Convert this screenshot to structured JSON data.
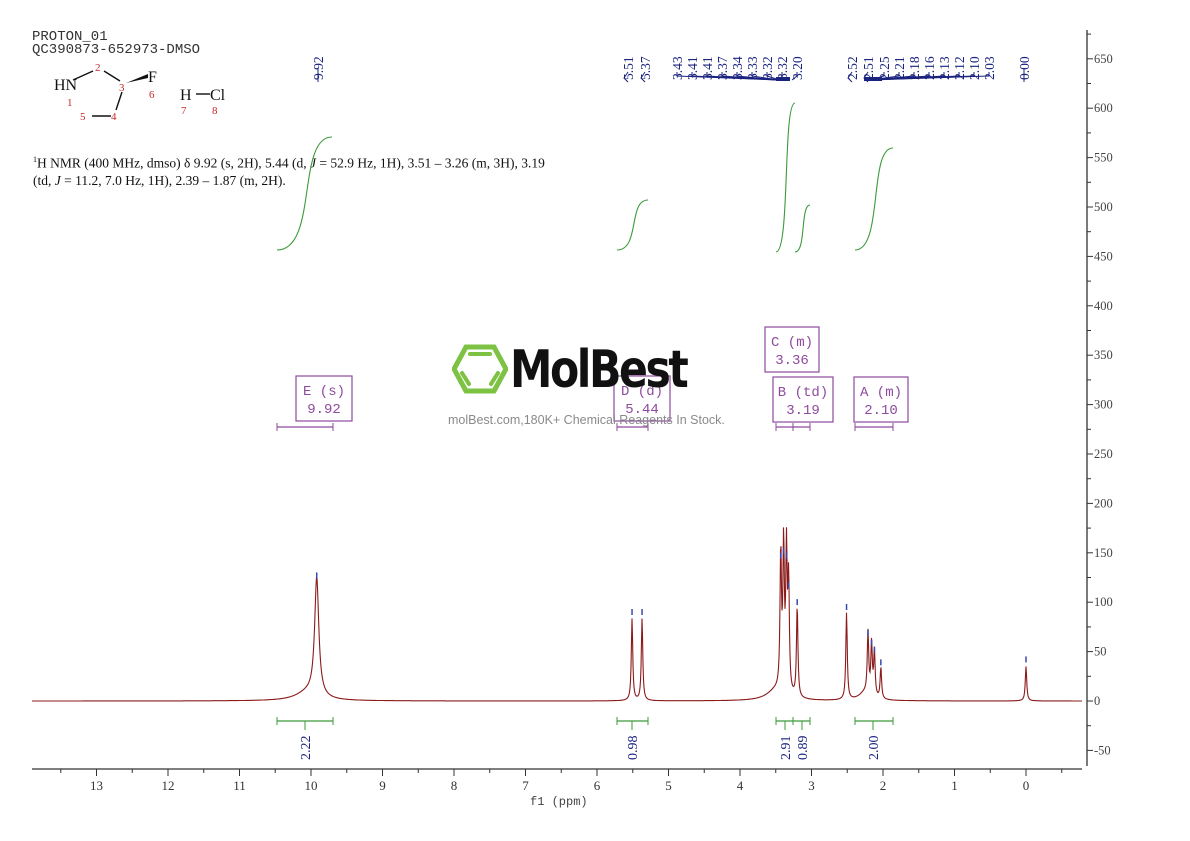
{
  "header": {
    "line1": "PROTON_01",
    "line2": "QC390873-652973-DMSO"
  },
  "structure": {
    "atoms": [
      {
        "label": "HN",
        "num": "1"
      },
      {
        "label": "",
        "num": "2"
      },
      {
        "label": "",
        "num": "3"
      },
      {
        "label": "",
        "num": "4"
      },
      {
        "label": "",
        "num": "5"
      },
      {
        "label": "F",
        "num": "6"
      },
      {
        "label": "H",
        "num": "7"
      },
      {
        "label": "Cl",
        "num": "8"
      }
    ]
  },
  "description": {
    "prefix_sup": "1",
    "text_a": "H NMR (400 MHz, dmso) δ 9.92 (s, 2H), 5.44 (d, ",
    "J1": "J",
    "text_b": " = 52.9 Hz, 1H), 3.51 – 3.26 (m, 3H), 3.19",
    "text_c": "(td, ",
    "J2": "J",
    "text_d": " = 11.2, 7.0 Hz, 1H), 2.39 – 1.87 (m, 2H)."
  },
  "watermark": {
    "brand": "MolBest",
    "tagline": "molBest.com,180K+ Chemical Reagents In Stock.",
    "accent": "#7dc242"
  },
  "colors": {
    "spectrum": "#8b1a1a",
    "integral": "#3a9a3a",
    "peak_labels": "#1a237e",
    "multiplet_boxes": "#8e4a9e",
    "axis": "#333333"
  },
  "chart_data": {
    "type": "line",
    "title": "PROTON_01 QC390873-652973-DMSO",
    "xlabel": "f1 (ppm)",
    "ylabel": "",
    "xlim": [
      13.9,
      -0.8
    ],
    "ylim": [
      -65,
      680
    ],
    "x_ticks": [
      "13",
      "12",
      "11",
      "10",
      "9",
      "8",
      "7",
      "6",
      "5",
      "4",
      "3",
      "2",
      "1",
      "0"
    ],
    "y_ticks": [
      "650",
      "600",
      "550",
      "500",
      "450",
      "400",
      "350",
      "300",
      "250",
      "200",
      "150",
      "100",
      "50",
      "0",
      "-50"
    ],
    "peak_labels": [
      "9.92",
      "5.51",
      "5.37",
      "3.43",
      "3.41",
      "3.41",
      "3.37",
      "3.34",
      "3.33",
      "3.32",
      "3.32",
      "3.20",
      "2.52",
      "2.51",
      "2.25",
      "2.21",
      "2.18",
      "2.16",
      "2.13",
      "2.12",
      "2.10",
      "2.03",
      "0.00"
    ],
    "peaks": [
      {
        "ppm": 9.92,
        "height": 120
      },
      {
        "ppm": 5.51,
        "height": 83
      },
      {
        "ppm": 5.37,
        "height": 83
      },
      {
        "ppm": 3.43,
        "height": 140
      },
      {
        "ppm": 3.39,
        "height": 145
      },
      {
        "ppm": 3.35,
        "height": 140
      },
      {
        "ppm": 3.32,
        "height": 110
      },
      {
        "ppm": 3.2,
        "height": 93
      },
      {
        "ppm": 2.51,
        "height": 88
      },
      {
        "ppm": 2.21,
        "height": 62
      },
      {
        "ppm": 2.16,
        "height": 52
      },
      {
        "ppm": 2.12,
        "height": 45
      },
      {
        "ppm": 2.03,
        "height": 32
      },
      {
        "ppm": 0.0,
        "height": 35
      }
    ],
    "multiplets": [
      {
        "id": "E",
        "type": "s",
        "ppm": "9.92",
        "range": [
          10.5,
          9.72
        ]
      },
      {
        "id": "D",
        "type": "d",
        "ppm": "5.44",
        "range": [
          5.75,
          5.3
        ]
      },
      {
        "id": "C",
        "type": "m",
        "ppm": "3.36",
        "range": [
          3.51,
          3.26
        ]
      },
      {
        "id": "B",
        "type": "td",
        "ppm": "3.19",
        "range": [
          3.26,
          3.02
        ]
      },
      {
        "id": "A",
        "type": "m",
        "ppm": "2.10",
        "range": [
          2.39,
          1.87
        ]
      }
    ],
    "integrals": [
      {
        "range": [
          10.5,
          9.72
        ],
        "value": "2.22"
      },
      {
        "range": [
          5.75,
          5.3
        ],
        "value": "0.98"
      },
      {
        "range": [
          3.51,
          3.26
        ],
        "value": "2.91"
      },
      {
        "range": [
          3.26,
          3.02
        ],
        "value": "0.89"
      },
      {
        "range": [
          2.39,
          1.87
        ],
        "value": "2.00"
      }
    ]
  }
}
